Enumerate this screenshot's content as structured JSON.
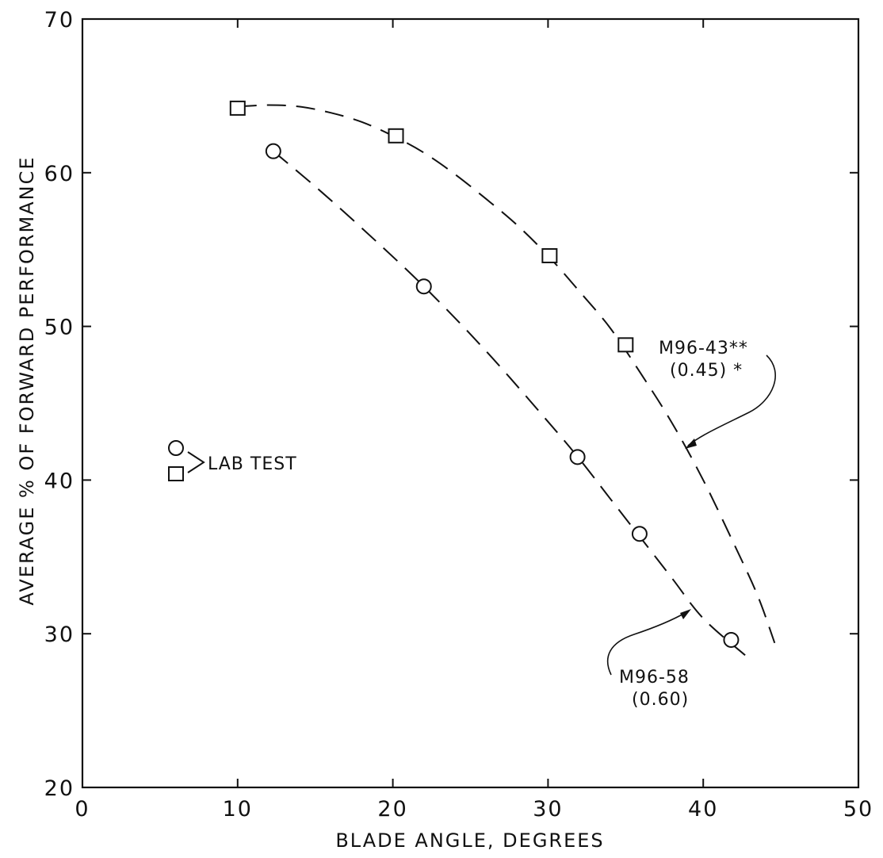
{
  "chart_data": {
    "type": "scatter",
    "title": "",
    "xlabel": "BLADE ANGLE, DEGREES",
    "ylabel": "AVERAGE % OF FORWARD PERFORMANCE",
    "xlim": [
      0,
      50
    ],
    "ylim": [
      20,
      70
    ],
    "xticks": [
      0,
      10,
      20,
      30,
      40,
      50
    ],
    "yticks": [
      20,
      30,
      40,
      50,
      60,
      70
    ],
    "xtick_labels": [
      "0",
      "10",
      "20",
      "30",
      "40",
      "50"
    ],
    "ytick_labels": [
      "20",
      "30",
      "40",
      "50",
      "60",
      "70"
    ],
    "grid": false,
    "series": [
      {
        "marker": "square",
        "points": [
          {
            "x": 10,
            "y": 64.2
          },
          {
            "x": 20.2,
            "y": 62.4
          },
          {
            "x": 30.1,
            "y": 54.6
          },
          {
            "x": 35,
            "y": 48.8
          }
        ],
        "fit_curve": [
          {
            "x": 10,
            "y": 64.3
          },
          {
            "x": 12,
            "y": 64.4
          },
          {
            "x": 14,
            "y": 64.3
          },
          {
            "x": 16,
            "y": 63.9
          },
          {
            "x": 18,
            "y": 63.3
          },
          {
            "x": 20,
            "y": 62.4
          },
          {
            "x": 22,
            "y": 61.3
          },
          {
            "x": 24,
            "y": 59.9
          },
          {
            "x": 26,
            "y": 58.3
          },
          {
            "x": 28,
            "y": 56.6
          },
          {
            "x": 30,
            "y": 54.6
          },
          {
            "x": 32,
            "y": 52.3
          },
          {
            "x": 34,
            "y": 49.9
          },
          {
            "x": 36,
            "y": 46.9
          },
          {
            "x": 38,
            "y": 43.7
          },
          {
            "x": 40,
            "y": 40
          },
          {
            "x": 42,
            "y": 35.8
          },
          {
            "x": 43.5,
            "y": 32.5
          },
          {
            "x": 44.6,
            "y": 29.4
          }
        ]
      },
      {
        "marker": "circle",
        "points": [
          {
            "x": 12.3,
            "y": 61.4
          },
          {
            "x": 22.0,
            "y": 52.6
          },
          {
            "x": 31.9,
            "y": 41.5
          },
          {
            "x": 35.9,
            "y": 36.5
          },
          {
            "x": 41.8,
            "y": 29.6
          }
        ],
        "fit_curve": [
          {
            "x": 12.3,
            "y": 61.4
          },
          {
            "x": 15,
            "y": 59.1
          },
          {
            "x": 18,
            "y": 56.4
          },
          {
            "x": 22,
            "y": 52.6
          },
          {
            "x": 26,
            "y": 48.4
          },
          {
            "x": 30,
            "y": 43.8
          },
          {
            "x": 32,
            "y": 41.4
          },
          {
            "x": 34,
            "y": 38.8
          },
          {
            "x": 36,
            "y": 36.2
          },
          {
            "x": 38,
            "y": 33.6
          },
          {
            "x": 40,
            "y": 31.0
          },
          {
            "x": 42.7,
            "y": 28.6
          }
        ]
      }
    ],
    "legend": {
      "label": "LAB TEST",
      "placement": "left-middle"
    },
    "annotations": [
      {
        "name": "m96-43",
        "lines": [
          "M96-43**",
          "(0.45) *"
        ]
      },
      {
        "name": "m96-58",
        "lines": [
          "M96-58",
          "(0.60)"
        ]
      }
    ]
  }
}
